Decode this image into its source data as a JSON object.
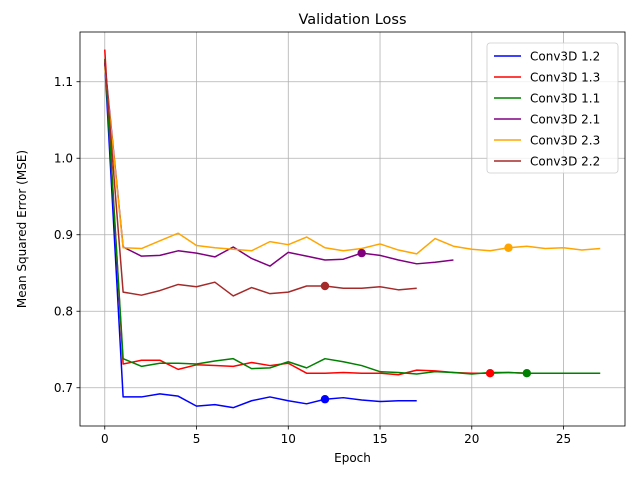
{
  "chart_data": {
    "type": "line",
    "title": "Validation Loss",
    "xlabel": "Epoch",
    "ylabel": "Mean Squared Error (MSE)",
    "xlim": [
      -1.35,
      28.35
    ],
    "ylim": [
      0.65,
      1.165
    ],
    "xticks": [
      0,
      5,
      10,
      15,
      20,
      25
    ],
    "xtick_labels": [
      "0",
      "5",
      "10",
      "15",
      "20",
      "25"
    ],
    "yticks": [
      0.7,
      0.8,
      0.9,
      1.0,
      1.1
    ],
    "ytick_labels": [
      "0.7",
      "0.8",
      "0.9",
      "1.0",
      "1.1"
    ],
    "grid": true,
    "legend_position": "top-right",
    "series": [
      {
        "name": "Conv3D 1.2",
        "color": "#0000ff",
        "x": [
          0,
          1,
          2,
          3,
          4,
          5,
          6,
          7,
          8,
          9,
          10,
          11,
          12,
          13,
          14,
          15,
          16,
          17
        ],
        "y": [
          1.125,
          0.688,
          0.688,
          0.692,
          0.689,
          0.676,
          0.678,
          0.674,
          0.683,
          0.688,
          0.683,
          0.679,
          0.685,
          0.687,
          0.684,
          0.682,
          0.683,
          0.683
        ],
        "best": {
          "x": 12,
          "y": 0.685
        }
      },
      {
        "name": "Conv3D 1.3",
        "color": "#ff0000",
        "x": [
          0,
          1,
          2,
          3,
          4,
          5,
          6,
          7,
          8,
          9,
          10,
          11,
          12,
          13,
          14,
          15,
          16,
          17,
          18,
          19,
          20,
          21,
          22,
          23,
          24,
          25,
          26
        ],
        "y": [
          1.142,
          0.731,
          0.736,
          0.736,
          0.724,
          0.73,
          0.729,
          0.728,
          0.733,
          0.729,
          0.732,
          0.719,
          0.719,
          0.72,
          0.719,
          0.719,
          0.717,
          0.723,
          0.722,
          0.72,
          0.719,
          0.719,
          0.72,
          0.719,
          0.719,
          0.719,
          0.719
        ],
        "best": {
          "x": 21,
          "y": 0.719
        }
      },
      {
        "name": "Conv3D 1.1",
        "color": "#008000",
        "x": [
          0,
          1,
          2,
          3,
          4,
          5,
          6,
          7,
          8,
          9,
          10,
          11,
          12,
          13,
          14,
          15,
          16,
          17,
          18,
          19,
          20,
          21,
          22,
          23,
          24,
          25,
          26,
          27
        ],
        "y": [
          1.13,
          0.738,
          0.728,
          0.732,
          0.732,
          0.731,
          0.735,
          0.738,
          0.725,
          0.726,
          0.734,
          0.726,
          0.738,
          0.734,
          0.729,
          0.721,
          0.72,
          0.718,
          0.721,
          0.72,
          0.718,
          0.72,
          0.72,
          0.719,
          0.719,
          0.719,
          0.719,
          0.719
        ],
        "best": {
          "x": 23,
          "y": 0.719
        }
      },
      {
        "name": "Conv3D 2.1",
        "color": "#800080",
        "x": [
          0,
          1,
          2,
          3,
          4,
          5,
          6,
          7,
          8,
          9,
          10,
          11,
          12,
          13,
          14,
          15,
          16,
          17,
          18,
          19
        ],
        "y": [
          1.125,
          0.884,
          0.872,
          0.873,
          0.879,
          0.876,
          0.871,
          0.884,
          0.869,
          0.859,
          0.877,
          0.872,
          0.867,
          0.868,
          0.876,
          0.873,
          0.867,
          0.862,
          0.864,
          0.867
        ],
        "best": {
          "x": 14,
          "y": 0.876
        }
      },
      {
        "name": "Conv3D 2.3",
        "color": "#ffa500",
        "x": [
          0,
          1,
          2,
          3,
          4,
          5,
          6,
          7,
          8,
          9,
          10,
          11,
          12,
          13,
          14,
          15,
          16,
          17,
          18,
          19,
          20,
          21,
          22,
          23,
          24,
          25,
          26,
          27
        ],
        "y": [
          1.12,
          0.883,
          0.882,
          0.892,
          0.902,
          0.886,
          0.883,
          0.881,
          0.879,
          0.891,
          0.887,
          0.897,
          0.883,
          0.879,
          0.882,
          0.888,
          0.88,
          0.875,
          0.895,
          0.885,
          0.881,
          0.879,
          0.883,
          0.885,
          0.882,
          0.883,
          0.88,
          0.882
        ],
        "best": {
          "x": 22,
          "y": 0.883
        }
      },
      {
        "name": "Conv3D 2.2",
        "color": "#a52a2a",
        "x": [
          0,
          1,
          2,
          3,
          4,
          5,
          6,
          7,
          8,
          9,
          10,
          11,
          12,
          13,
          14,
          15,
          16,
          17
        ],
        "y": [
          1.128,
          0.825,
          0.821,
          0.827,
          0.835,
          0.832,
          0.838,
          0.82,
          0.831,
          0.823,
          0.825,
          0.833,
          0.833,
          0.83,
          0.83,
          0.832,
          0.828,
          0.83
        ],
        "best": {
          "x": 12,
          "y": 0.833
        }
      }
    ]
  }
}
